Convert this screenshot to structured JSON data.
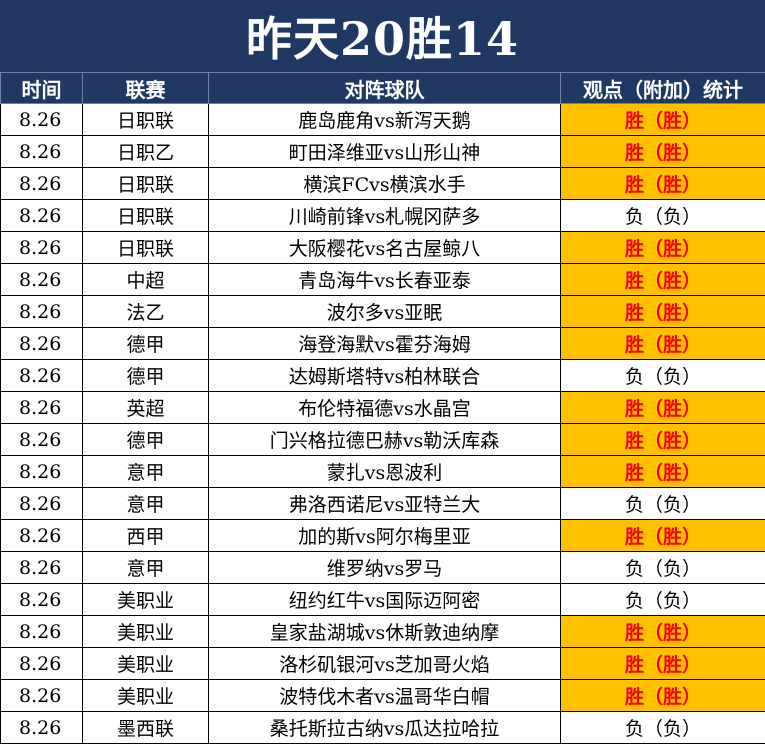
{
  "title": "昨天20胜14",
  "colors": {
    "header_bg": "#1f3864",
    "win_bg": "#ffc000",
    "win_text": "#ff0000"
  },
  "headers": {
    "time": "时间",
    "league": "联赛",
    "match": "对阵球队",
    "stat": "观点（附加）统计"
  },
  "rows": [
    {
      "time": "8.26",
      "league": "日职联",
      "match": "鹿岛鹿角vs新泻天鹅",
      "stat": "胜（胜）",
      "result": "win"
    },
    {
      "time": "8.26",
      "league": "日职乙",
      "match": "町田泽维亚vs山形山神",
      "stat": "胜（胜）",
      "result": "win"
    },
    {
      "time": "8.26",
      "league": "日职联",
      "match": "横滨FCvs横滨水手",
      "stat": "胜（胜）",
      "result": "win"
    },
    {
      "time": "8.26",
      "league": "日职联",
      "match": "川崎前锋vs札幌冈萨多",
      "stat": "负（负）",
      "result": "loss"
    },
    {
      "time": "8.26",
      "league": "日职联",
      "match": "大阪樱花vs名古屋鲸八",
      "stat": "胜（胜）",
      "result": "win"
    },
    {
      "time": "8.26",
      "league": "中超",
      "match": "青岛海牛vs长春亚泰",
      "stat": "胜（胜）",
      "result": "win"
    },
    {
      "time": "8.26",
      "league": "法乙",
      "match": "波尔多vs亚眠",
      "stat": "胜（胜）",
      "result": "win"
    },
    {
      "time": "8.26",
      "league": "德甲",
      "match": "海登海默vs霍芬海姆",
      "stat": "胜（胜）",
      "result": "win"
    },
    {
      "time": "8.26",
      "league": "德甲",
      "match": "达姆斯塔特vs柏林联合",
      "stat": "负（负）",
      "result": "loss"
    },
    {
      "time": "8.26",
      "league": "英超",
      "match": "布伦特福德vs水晶宫",
      "stat": "胜（胜）",
      "result": "win"
    },
    {
      "time": "8.26",
      "league": "德甲",
      "match": "门兴格拉德巴赫vs勒沃库森",
      "stat": "胜（胜）",
      "result": "win"
    },
    {
      "time": "8.26",
      "league": "意甲",
      "match": "蒙扎vs恩波利",
      "stat": "胜（胜）",
      "result": "win"
    },
    {
      "time": "8.26",
      "league": "意甲",
      "match": "弗洛西诺尼vs亚特兰大",
      "stat": "负（负）",
      "result": "loss"
    },
    {
      "time": "8.26",
      "league": "西甲",
      "match": "加的斯vs阿尔梅里亚",
      "stat": "胜（胜）",
      "result": "win"
    },
    {
      "time": "8.26",
      "league": "意甲",
      "match": "维罗纳vs罗马",
      "stat": "负（负）",
      "result": "loss"
    },
    {
      "time": "8.26",
      "league": "美职业",
      "match": "纽约红牛vs国际迈阿密",
      "stat": "负（负）",
      "result": "loss"
    },
    {
      "time": "8.26",
      "league": "美职业",
      "match": "皇家盐湖城vs休斯敦迪纳摩",
      "stat": "胜（胜）",
      "result": "win"
    },
    {
      "time": "8.26",
      "league": "美职业",
      "match": "洛杉矶银河vs芝加哥火焰",
      "stat": "胜（胜）",
      "result": "win"
    },
    {
      "time": "8.26",
      "league": "美职业",
      "match": "波特伐木者vs温哥华白帽",
      "stat": "胜（胜）",
      "result": "win"
    },
    {
      "time": "8.26",
      "league": "墨西联",
      "match": "桑托斯拉古纳vs瓜达拉哈拉",
      "stat": "负（负）",
      "result": "loss"
    }
  ]
}
